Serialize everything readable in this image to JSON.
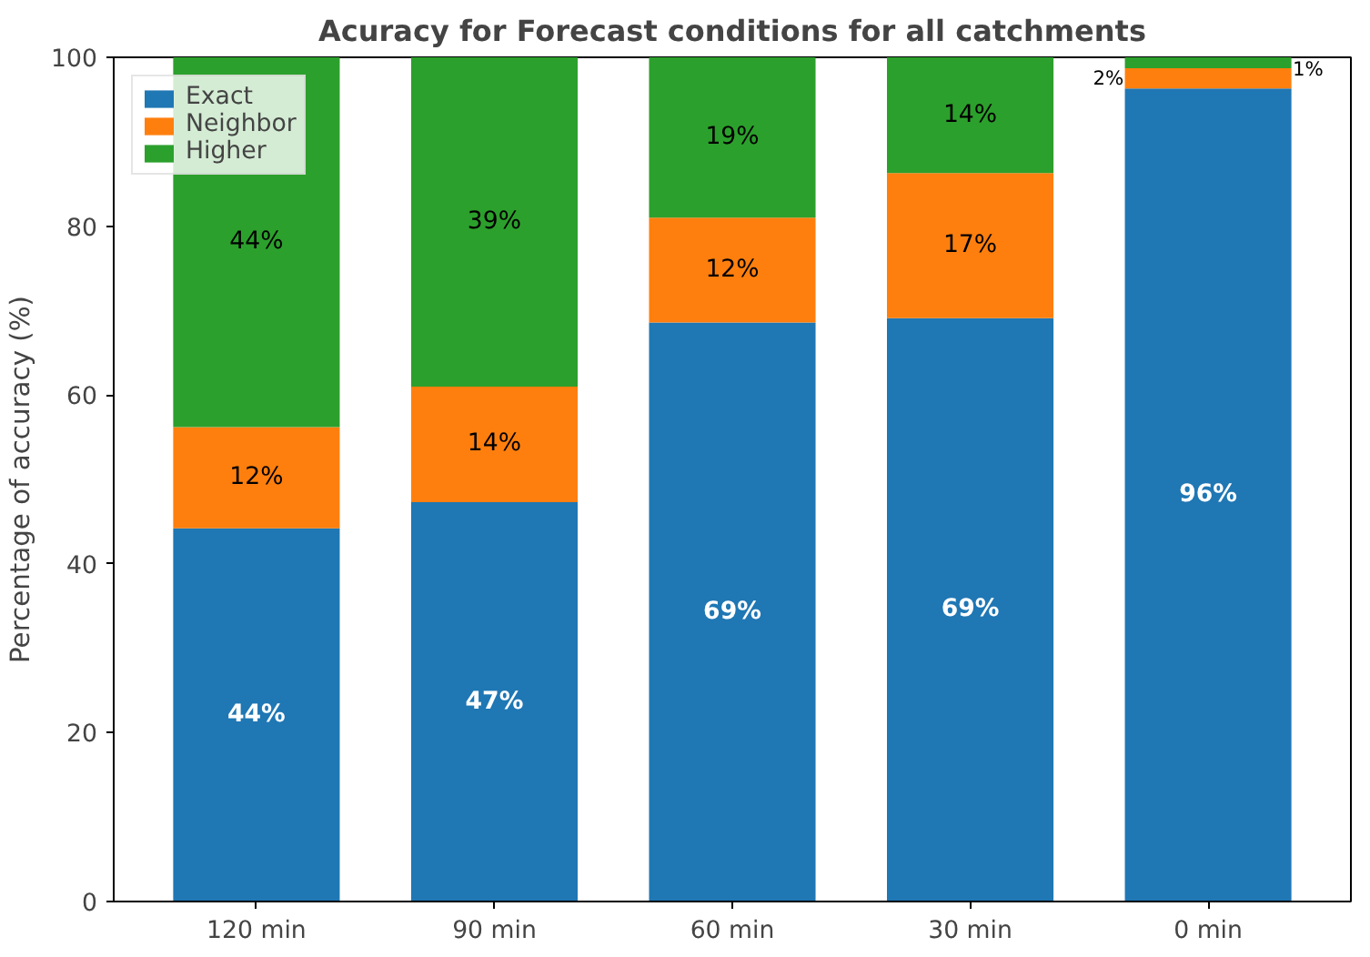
{
  "chart_data": {
    "type": "bar",
    "stacked": true,
    "title": "Acuracy for Forecast conditions for all catchments",
    "ylabel": "Percentage of accuracy (%)",
    "categories": [
      "120 min",
      "90 min",
      "60 min",
      "30 min",
      "0 min"
    ],
    "series": [
      {
        "name": "Exact",
        "color": "#1f77b4",
        "values": [
          44.2,
          47.3,
          68.6,
          69.1,
          96.3
        ],
        "value_labels": [
          "44%",
          "47%",
          "69%",
          "69%",
          "96%"
        ]
      },
      {
        "name": "Neighbor",
        "color": "#ff7f0e",
        "values": [
          12.0,
          13.7,
          12.4,
          17.2,
          2.4
        ],
        "value_labels": [
          "12%",
          "14%",
          "12%",
          "17%",
          "2%"
        ]
      },
      {
        "name": "Higher",
        "color": "#2ca02c",
        "values": [
          43.8,
          39.0,
          19.0,
          13.7,
          1.3
        ],
        "value_labels": [
          "44%",
          "39%",
          "19%",
          "14%",
          "1%"
        ]
      }
    ],
    "ylim": [
      0,
      100
    ],
    "yticks": [
      0,
      20,
      40,
      60,
      80,
      100
    ],
    "legend": "top left",
    "grid": false
  }
}
